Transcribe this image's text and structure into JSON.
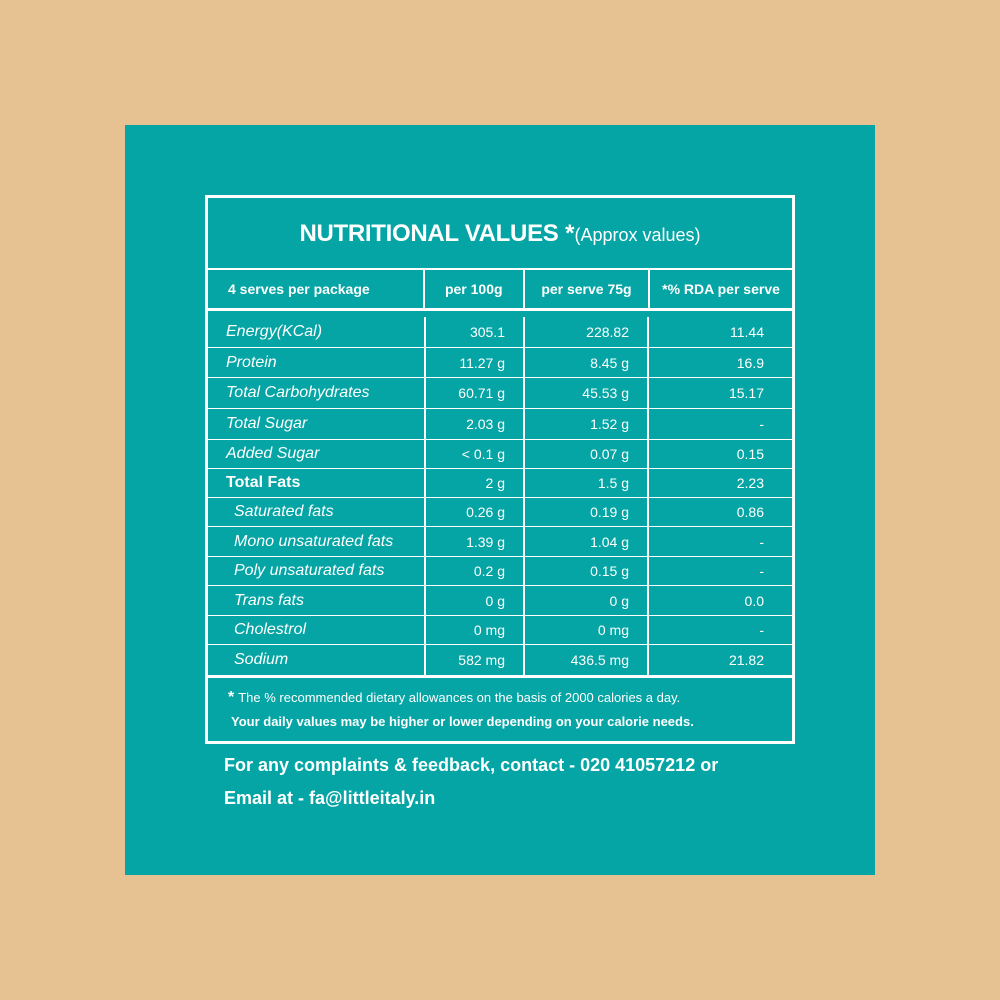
{
  "title": {
    "main": "NUTRITIONAL VALUES",
    "star": "*",
    "note": "(Approx values)"
  },
  "headers": [
    "4 serves per package",
    "per 100g",
    "per serve 75g",
    "*% RDA per serve"
  ],
  "rows": [
    {
      "name": "Energy(KCal)",
      "per100g": "305.1",
      "perServe": "228.82",
      "rda": "11.44"
    },
    {
      "name": "Protein",
      "per100g": "11.27 g",
      "perServe": "8.45 g",
      "rda": "16.9"
    },
    {
      "name": "Total Carbohydrates",
      "per100g": "60.71 g",
      "perServe": "45.53 g",
      "rda": "15.17"
    },
    {
      "name": "Total Sugar",
      "per100g": "2.03 g",
      "perServe": "1.52 g",
      "rda": "-"
    },
    {
      "name": "Added Sugar",
      "per100g": "< 0.1 g",
      "perServe": "0.07 g",
      "rda": "0.15"
    },
    {
      "name": "Total Fats",
      "per100g": "2 g",
      "perServe": "1.5 g",
      "rda": "2.23"
    },
    {
      "name": "Saturated fats",
      "per100g": "0.26 g",
      "perServe": "0.19 g",
      "rda": "0.86"
    },
    {
      "name": "Mono unsaturated fats",
      "per100g": "1.39 g",
      "perServe": "1.04 g",
      "rda": "-"
    },
    {
      "name": "Poly unsaturated fats",
      "per100g": "0.2 g",
      "perServe": "0.15 g",
      "rda": "-"
    },
    {
      "name": "Trans fats",
      "per100g": "0 g",
      "perServe": "0 g",
      "rda": "0.0"
    },
    {
      "name": "Cholestrol",
      "per100g": "0 mg",
      "perServe": "0 mg",
      "rda": "-"
    },
    {
      "name": "Sodium",
      "per100g": "582 mg",
      "perServe": "436.5 mg",
      "rda": "21.82"
    }
  ],
  "footnote": {
    "star": "*",
    "line1": "The % recommended dietary allowances on the basis of 2000 calories a day.",
    "line2": "Your daily values may be higher or lower depending on your calorie needs."
  },
  "contact": {
    "line1": "For any complaints & feedback, contact - 020 41057212 or",
    "line2": "Email at - fa@littleitaly.in"
  },
  "colors": {
    "background": "#e6c293",
    "panel": "#05a5a5",
    "text": "#ffffff"
  }
}
